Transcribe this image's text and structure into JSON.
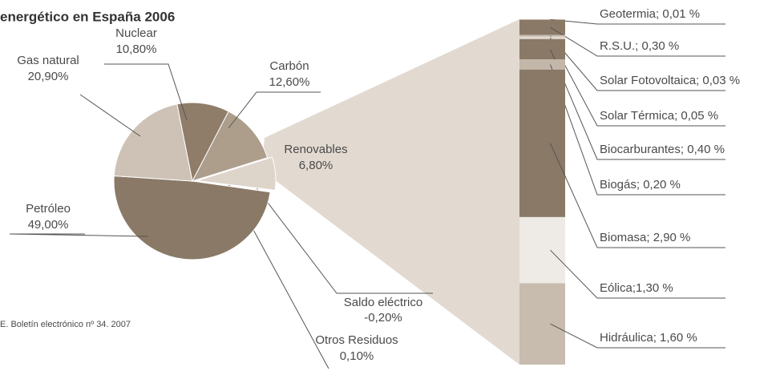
{
  "chart_data": {
    "type": "bar-of-pie",
    "title": "energético en España 2006",
    "source": "E. Boletín electrónico nº 34. 2007",
    "categories": [
      "Saldo eléctrico",
      "Otros Residuos",
      "Petróleo",
      "Gas natural",
      "Nuclear",
      "Carbón",
      "Renovables"
    ],
    "values": [
      -0.2,
      0.1,
      49.0,
      20.9,
      10.8,
      12.6,
      6.8
    ],
    "value_labels": [
      "-0,20%",
      "0,10%",
      "49,00%",
      "20,90%",
      "10,80%",
      "12,60%",
      "6,80%"
    ],
    "colors": [
      "#f2efea",
      "#b8ab9c",
      "#8a7966",
      "#cdc2b5",
      "#8f7d6a",
      "#ad9e8c",
      "#ddd4ca"
    ],
    "breakdown": {
      "labels": [
        "Geotermia; 0,01 %",
        "R.S.U.; 0,30 %",
        "Solar Fotovoltaica; 0,03 %",
        "Solar Térmica; 0,05 %",
        "Biocarburantes; 0,40 %",
        "Biogás; 0,20 %",
        "Biomasa; 2,90 %",
        "Eólica;1,30 %",
        "Hidráulica; 1,60 %"
      ],
      "values": [
        0.01,
        0.3,
        0.03,
        0.05,
        0.4,
        0.2,
        2.9,
        1.3,
        1.6
      ],
      "colors": [
        "#d8cec4",
        "#8a7966",
        "#c3b7aa",
        "#e0d8cf",
        "#8a7966",
        "#c3b7aa",
        "#8a7966",
        "#eeebe6",
        "#c8bcae"
      ]
    }
  }
}
